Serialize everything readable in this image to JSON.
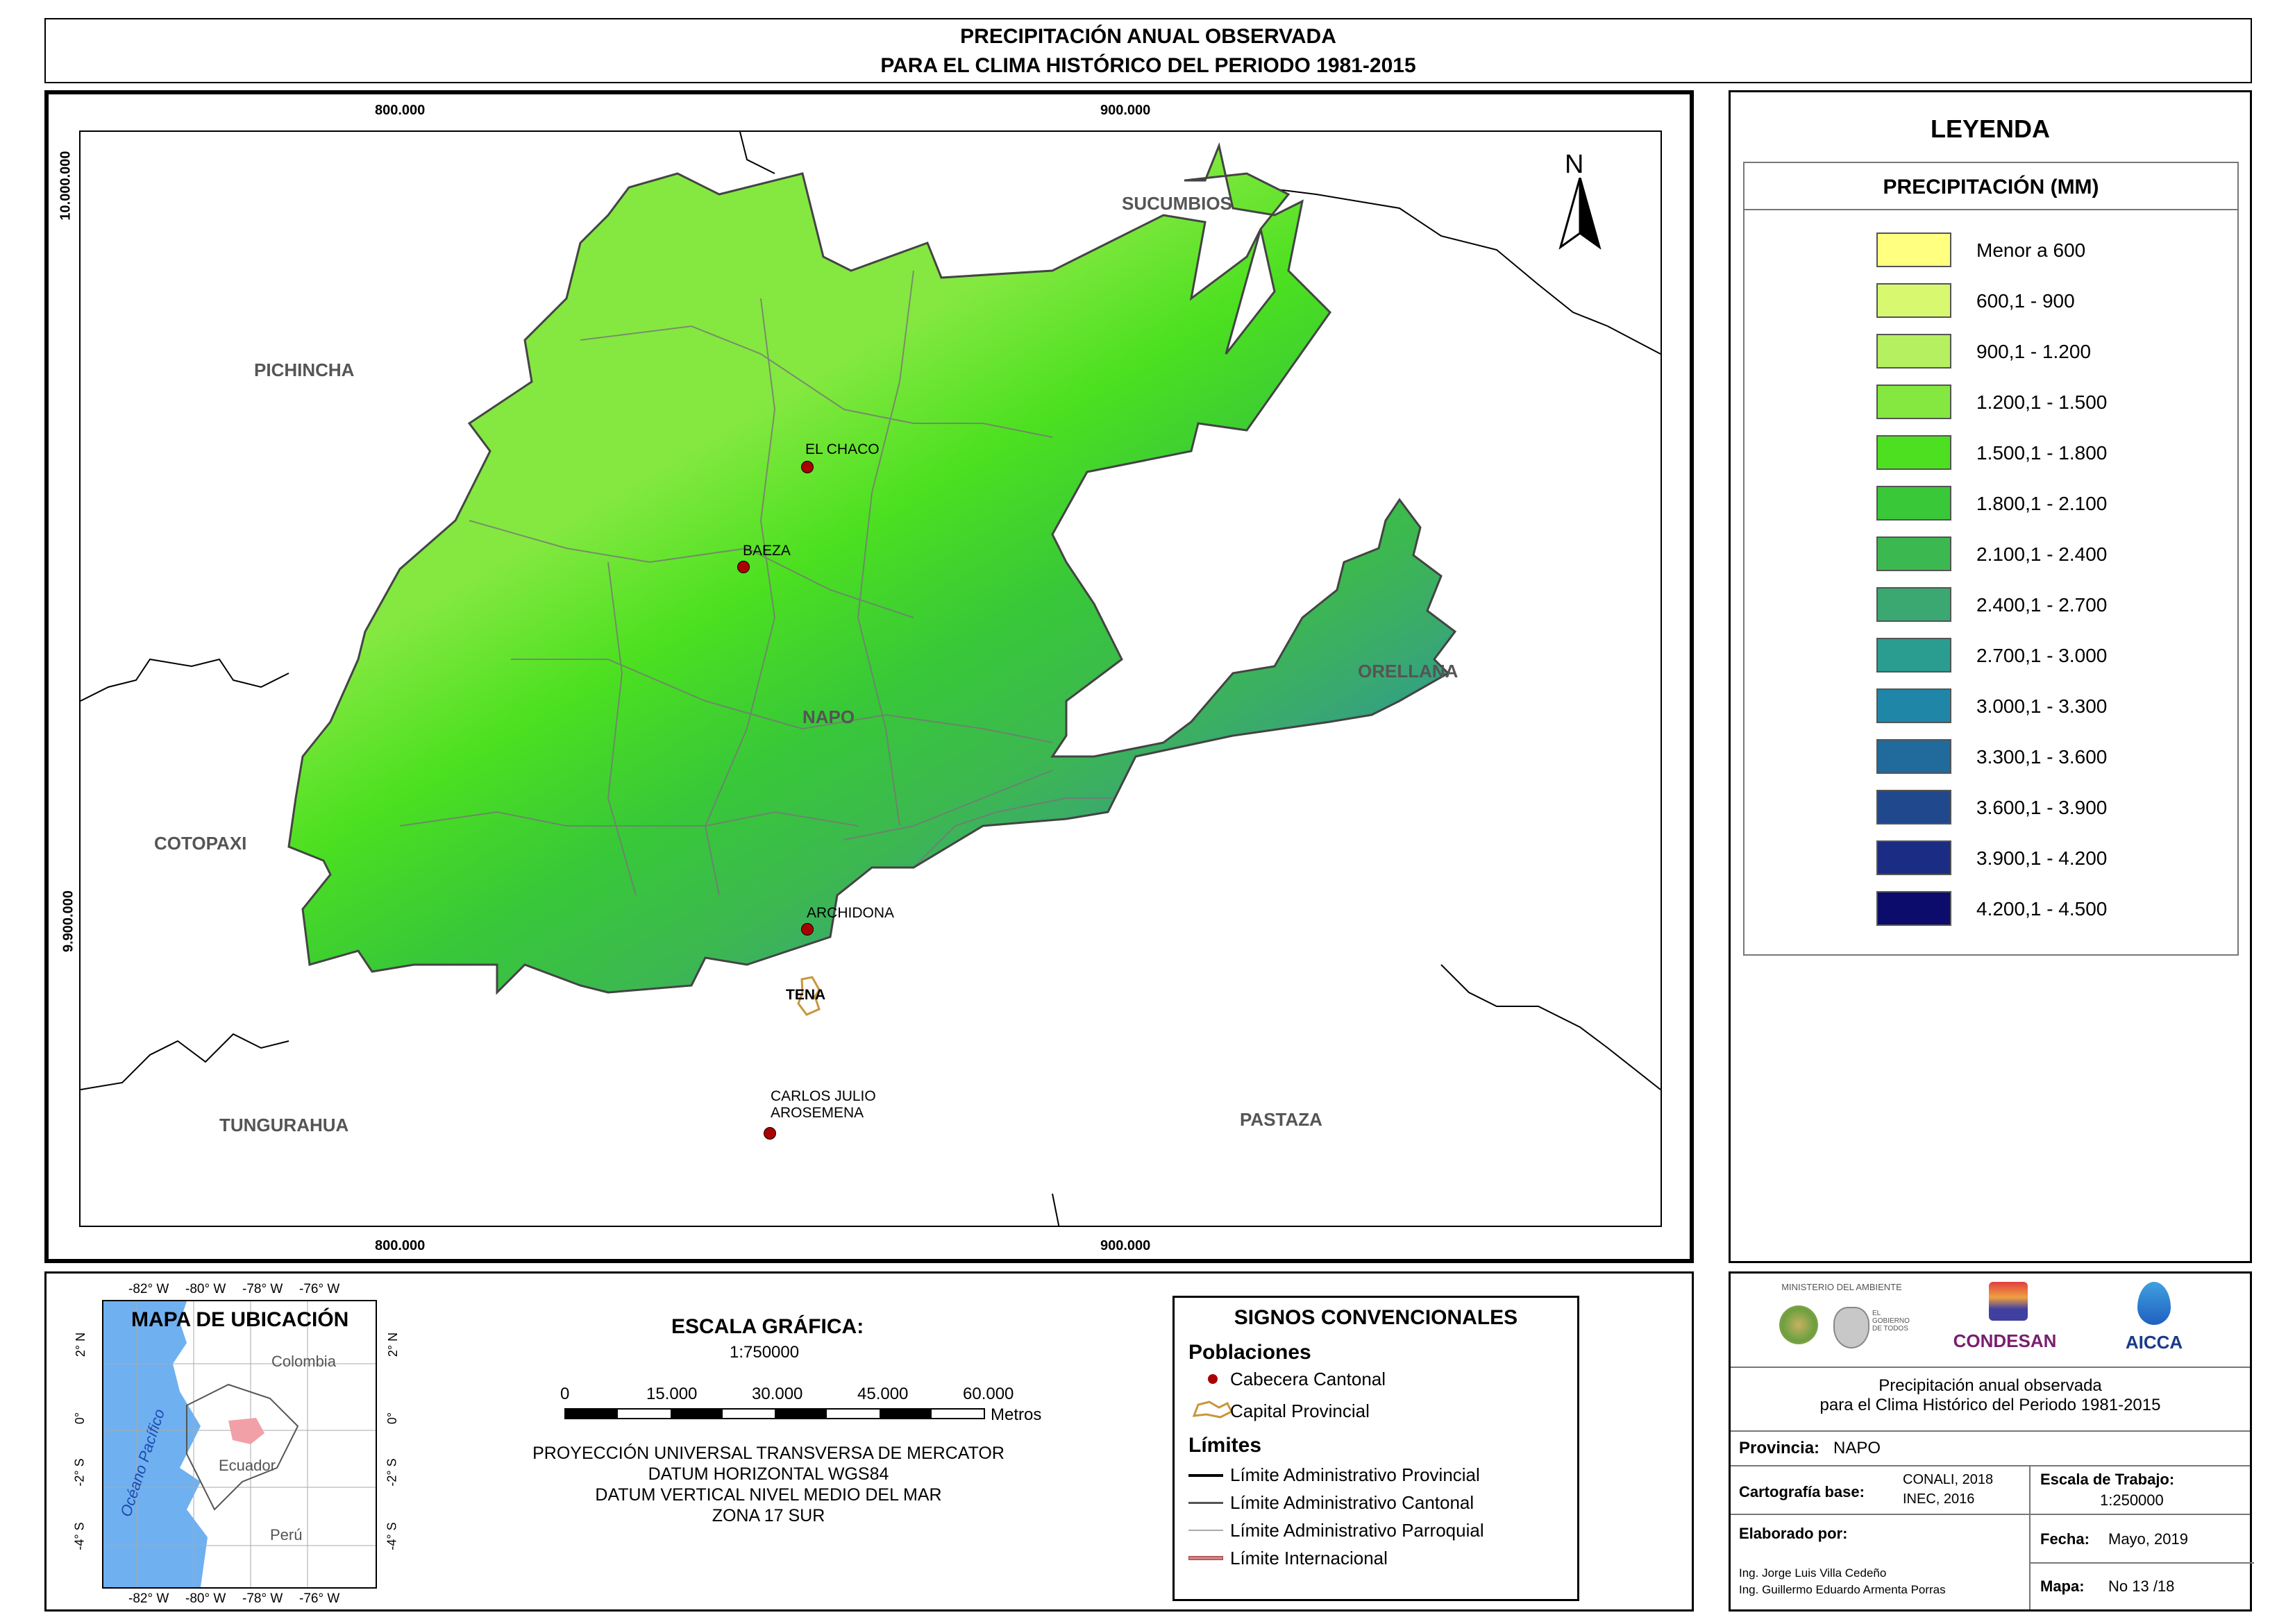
{
  "header": {
    "title_line1": "PRECIPITACIÓN ANUAL OBSERVADA",
    "title_line2": "PARA EL CLIMA HISTÓRICO DEL PERIODO 1981-2015"
  },
  "map": {
    "grid_x": [
      "800.000",
      "900.000"
    ],
    "grid_y": [
      "10.000.000",
      "9.900.000"
    ],
    "north_label": "N",
    "regions": {
      "sucumbios": "SUCUMBIOS",
      "pichincha": "PICHINCHA",
      "orellana": "ORELLANA",
      "napo": "NAPO",
      "cotopaxi": "COTOPAXI",
      "tungurahua": "TUNGURAHUA",
      "pastaza": "PASTAZA"
    },
    "towns": {
      "el_chaco": "EL CHACO",
      "baeza": "BAEZA",
      "archidona": "ARCHIDONA",
      "tena": "TENA",
      "carlos_line1": "CARLOS JULIO",
      "carlos_line2": "AROSEMENA"
    }
  },
  "legend": {
    "title": "LEYENDA",
    "subtitle": "PRECIPITACIÓN (MM)",
    "items": [
      {
        "label": "Menor a 600",
        "color": "#ffff80"
      },
      {
        "label": "600,1 - 900",
        "color": "#d8f870"
      },
      {
        "label": "900,1 - 1.200",
        "color": "#b4f060"
      },
      {
        "label": "1.200,1 - 1.500",
        "color": "#84e840"
      },
      {
        "label": "1.500,1 - 1.800",
        "color": "#4ce020"
      },
      {
        "label": "1.800,1 - 2.100",
        "color": "#38c838"
      },
      {
        "label": "2.100,1 - 2.400",
        "color": "#3cb850"
      },
      {
        "label": "2.400,1 - 2.700",
        "color": "#3aa870"
      },
      {
        "label": "2.700,1 - 3.000",
        "color": "#2a9c90"
      },
      {
        "label": "3.000,1 - 3.300",
        "color": "#2086a8"
      },
      {
        "label": "3.300,1 - 3.600",
        "color": "#206a9c"
      },
      {
        "label": "3.600,1 - 3.900",
        "color": "#20488c"
      },
      {
        "label": "3.900,1 - 4.200",
        "color": "#1a2c84"
      },
      {
        "label": "4.200,1 - 4.500",
        "color": "#0c0c6c"
      }
    ]
  },
  "location_map": {
    "title": "MAPA DE UBICACIÓN",
    "top_lon": [
      "-82° W",
      "-80° W",
      "-78° W",
      "-76° W"
    ],
    "bottom_lon": [
      "-82° W",
      "-80° W",
      "-78° W",
      "-76° W"
    ],
    "lat": [
      "2° N",
      "0°",
      "-2° S",
      "-4° S"
    ],
    "colombia": "Colombia",
    "ecuador": "Ecuador",
    "peru": "Perú",
    "ocean": "Océano Pacífico"
  },
  "scale": {
    "title": "ESCALA GRÁFICA:",
    "ratio": "1:750000",
    "ticks": [
      "0",
      "15.000",
      "30.000",
      "45.000",
      "60.000"
    ],
    "unit": "Metros",
    "projection": [
      "PROYECCIÓN UNIVERSAL TRANSVERSA DE MERCATOR",
      "DATUM HORIZONTAL WGS84",
      "DATUM VERTICAL NIVEL MEDIO DEL MAR",
      "ZONA 17 SUR"
    ]
  },
  "signs": {
    "title": "SIGNOS CONVENCIONALES",
    "poblaciones": "Poblaciones",
    "cabecera": "Cabecera Cantonal",
    "capital": "Capital Provincial",
    "limites": "Límites",
    "lim_provincial": "Límite Administrativo Provincial",
    "lim_cantonal": "Límite Administrativo Cantonal",
    "lim_parroquial": "Límite Administrativo Parroquial",
    "lim_internacional": "Límite Internacional"
  },
  "info": {
    "logos": {
      "ministerio": "MINISTERIO DEL AMBIENTE",
      "gobierno": "EL GOBIERNO DE TODOS",
      "condesan": "CONDESAN",
      "aicca": "AICCA"
    },
    "map_title_line1": "Precipitación anual observada",
    "map_title_line2": "para el Clima Histórico del Periodo 1981-2015",
    "provincia_label": "Provincia:",
    "provincia_value": "NAPO",
    "cartografia_label": "Cartografía base:",
    "cartografia_value1": "CONALI, 2018",
    "cartografia_value2": "INEC, 2016",
    "escala_label": "Escala de Trabajo:",
    "escala_value": "1:250000",
    "elaborado_label": "Elaborado por:",
    "autor1": "Ing. Jorge Luis Villa Cedeño",
    "autor2": "Ing. Guillermo Eduardo Armenta Porras",
    "fecha_label": "Fecha:",
    "fecha_value": "Mayo, 2019",
    "mapa_label": "Mapa:",
    "mapa_value": "No 13 /18"
  }
}
